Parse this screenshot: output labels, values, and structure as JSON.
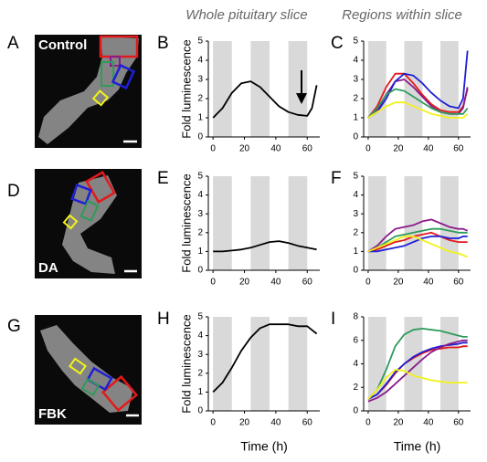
{
  "headings": [
    "Whole pituitary slice",
    "Regions within slice"
  ],
  "images": [
    {
      "panel": "A",
      "label": "Control"
    },
    {
      "panel": "D",
      "label": "DA"
    },
    {
      "panel": "G",
      "label": "FBK"
    }
  ],
  "chart_data": [
    {
      "type": "line",
      "panel": "B",
      "ylabel": "Fold luminescence",
      "x": [
        0,
        6,
        12,
        18,
        24,
        30,
        36,
        42,
        48,
        54,
        60,
        63,
        66
      ],
      "series": [
        {
          "color": "#000000",
          "values": [
            1.0,
            1.5,
            2.3,
            2.8,
            2.9,
            2.6,
            2.1,
            1.6,
            1.3,
            1.15,
            1.1,
            1.5,
            2.7
          ]
        }
      ],
      "xlim": [
        -3,
        68
      ],
      "ylim": [
        0,
        5
      ],
      "xticks": [
        0,
        20,
        40,
        60
      ],
      "yticks": [
        0,
        1,
        2,
        3,
        4,
        5
      ],
      "shaded": [
        [
          0,
          12
        ],
        [
          24,
          36
        ],
        [
          48,
          60
        ]
      ]
    },
    {
      "type": "line",
      "panel": "C",
      "x": [
        0,
        6,
        12,
        18,
        24,
        30,
        36,
        42,
        48,
        54,
        60,
        63,
        66
      ],
      "series": [
        {
          "color": "#e31a1c",
          "values": [
            1,
            1.6,
            2.6,
            3.3,
            3.3,
            2.8,
            2.2,
            1.7,
            1.4,
            1.3,
            1.3,
            1.6,
            2.5
          ]
        },
        {
          "color": "#8b1a8b",
          "values": [
            1,
            1.4,
            2.2,
            2.9,
            3.0,
            2.6,
            2.1,
            1.6,
            1.3,
            1.2,
            1.2,
            1.5,
            2.6
          ]
        },
        {
          "color": "#1f1fd6",
          "values": [
            1,
            1.3,
            2.0,
            2.9,
            3.3,
            3.2,
            2.8,
            2.3,
            1.9,
            1.6,
            1.5,
            2.0,
            4.5
          ]
        },
        {
          "color": "#2e9b5b",
          "values": [
            1,
            1.5,
            2.2,
            2.5,
            2.4,
            2.1,
            1.8,
            1.5,
            1.3,
            1.2,
            1.2,
            1.2,
            1.5
          ]
        },
        {
          "color": "#f2f21a",
          "values": [
            1,
            1.3,
            1.6,
            1.8,
            1.8,
            1.6,
            1.4,
            1.2,
            1.1,
            1.0,
            1.0,
            1.0,
            1.2
          ]
        }
      ],
      "xlim": [
        -3,
        68
      ],
      "ylim": [
        0,
        5
      ],
      "xticks": [
        0,
        20,
        40,
        60
      ],
      "yticks": [
        0,
        1,
        2,
        3,
        4,
        5
      ],
      "shaded": [
        [
          0,
          12
        ],
        [
          24,
          36
        ],
        [
          48,
          60
        ]
      ]
    },
    {
      "type": "line",
      "panel": "E",
      "ylabel": "Fold luminescence",
      "x": [
        0,
        6,
        12,
        18,
        24,
        30,
        36,
        42,
        48,
        54,
        60,
        63,
        66
      ],
      "series": [
        {
          "color": "#000000",
          "values": [
            1.0,
            1.0,
            1.05,
            1.1,
            1.2,
            1.35,
            1.5,
            1.55,
            1.45,
            1.3,
            1.2,
            1.15,
            1.1
          ]
        }
      ],
      "xlim": [
        -3,
        68
      ],
      "ylim": [
        0,
        5
      ],
      "xticks": [
        0,
        20,
        40,
        60
      ],
      "yticks": [
        0,
        1,
        2,
        3,
        4,
        5
      ],
      "shaded": [
        [
          0,
          12
        ],
        [
          24,
          36
        ],
        [
          48,
          60
        ]
      ]
    },
    {
      "type": "line",
      "panel": "F",
      "x": [
        0,
        6,
        12,
        18,
        24,
        30,
        36,
        42,
        48,
        54,
        60,
        63,
        66
      ],
      "series": [
        {
          "color": "#8b1a8b",
          "values": [
            1,
            1.3,
            1.8,
            2.2,
            2.3,
            2.4,
            2.6,
            2.7,
            2.5,
            2.3,
            2.2,
            2.2,
            2.1
          ]
        },
        {
          "color": "#2e9b5b",
          "values": [
            1,
            1.2,
            1.5,
            1.8,
            1.9,
            2.0,
            2.1,
            2.2,
            2.2,
            2.1,
            2.0,
            2.0,
            2.0
          ]
        },
        {
          "color": "#e31a1c",
          "values": [
            1,
            1.1,
            1.3,
            1.5,
            1.6,
            1.8,
            1.9,
            2.0,
            1.8,
            1.6,
            1.5,
            1.5,
            1.5
          ]
        },
        {
          "color": "#1f1fd6",
          "values": [
            1,
            1.0,
            1.1,
            1.2,
            1.3,
            1.5,
            1.7,
            1.8,
            1.8,
            1.7,
            1.7,
            1.8,
            1.8
          ]
        },
        {
          "color": "#f2f21a",
          "values": [
            1,
            1.2,
            1.4,
            1.6,
            1.8,
            1.8,
            1.6,
            1.4,
            1.2,
            1.0,
            0.9,
            0.8,
            0.7
          ]
        }
      ],
      "xlim": [
        -3,
        68
      ],
      "ylim": [
        0,
        5
      ],
      "xticks": [
        0,
        20,
        40,
        60
      ],
      "yticks": [
        0,
        1,
        2,
        3,
        4,
        5
      ],
      "shaded": [
        [
          0,
          12
        ],
        [
          24,
          36
        ],
        [
          48,
          60
        ]
      ]
    },
    {
      "type": "line",
      "panel": "H",
      "ylabel": "Fold luminescence",
      "xlabel": "Time (h)",
      "x": [
        0,
        6,
        12,
        18,
        24,
        30,
        36,
        42,
        48,
        54,
        60,
        63,
        66
      ],
      "series": [
        {
          "color": "#000000",
          "values": [
            1.0,
            1.5,
            2.3,
            3.2,
            3.9,
            4.4,
            4.6,
            4.6,
            4.6,
            4.5,
            4.5,
            4.3,
            4.1
          ]
        }
      ],
      "xlim": [
        -3,
        68
      ],
      "ylim": [
        0,
        5
      ],
      "xticks": [
        0,
        20,
        40,
        60
      ],
      "yticks": [
        0,
        1,
        2,
        3,
        4,
        5
      ],
      "shaded": [
        [
          0,
          12
        ],
        [
          24,
          36
        ],
        [
          48,
          60
        ]
      ]
    },
    {
      "type": "line",
      "panel": "I",
      "xlabel": "Time (h)",
      "x": [
        0,
        6,
        12,
        18,
        24,
        30,
        36,
        42,
        48,
        54,
        60,
        63,
        66
      ],
      "series": [
        {
          "color": "#2e9b5b",
          "values": [
            1,
            1.8,
            3.5,
            5.5,
            6.5,
            6.9,
            7.0,
            6.9,
            6.8,
            6.6,
            6.4,
            6.3,
            6.3
          ]
        },
        {
          "color": "#e31a1c",
          "values": [
            1,
            1.4,
            2.2,
            3.2,
            4.0,
            4.5,
            4.9,
            5.2,
            5.3,
            5.4,
            5.4,
            5.5,
            5.5
          ]
        },
        {
          "color": "#1f1fd6",
          "values": [
            1,
            1.4,
            2.3,
            3.3,
            4.0,
            4.6,
            5.0,
            5.3,
            5.5,
            5.6,
            5.7,
            5.8,
            5.8
          ]
        },
        {
          "color": "#8b1a8b",
          "values": [
            0.8,
            1.1,
            1.6,
            2.3,
            3.0,
            3.7,
            4.4,
            5.0,
            5.4,
            5.7,
            5.9,
            6.0,
            6.0
          ]
        },
        {
          "color": "#f2f21a",
          "values": [
            1,
            1.8,
            2.8,
            3.5,
            3.4,
            3.0,
            2.8,
            2.6,
            2.5,
            2.4,
            2.4,
            2.4,
            2.4
          ]
        }
      ],
      "xlim": [
        -3,
        68
      ],
      "ylim": [
        0,
        8
      ],
      "xticks": [
        0,
        20,
        40,
        60
      ],
      "yticks": [
        0,
        2,
        4,
        6,
        8
      ],
      "shaded": [
        [
          0,
          12
        ],
        [
          24,
          36
        ],
        [
          48,
          60
        ]
      ]
    }
  ]
}
